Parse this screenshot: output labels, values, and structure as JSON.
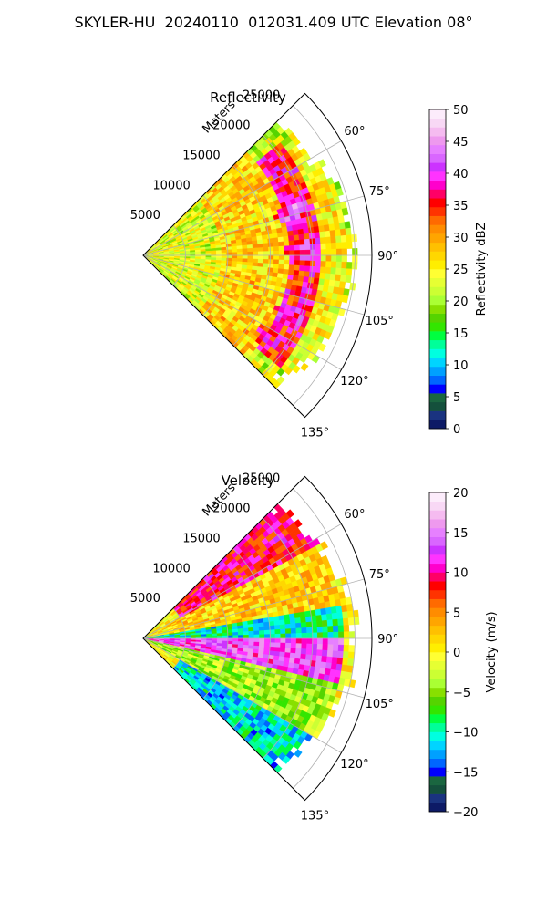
{
  "figure": {
    "title": "SKYLER-HU  20240110  012031.409 UTC Elevation 08°"
  },
  "chart_data": [
    {
      "type": "heatmap",
      "title": "Reflectivity",
      "projection": "polar-sector",
      "radial_axis_label": "Meters",
      "radial_ticks": [
        5000,
        10000,
        15000,
        20000,
        25000
      ],
      "radial_tick_labels": [
        "5000",
        "10000",
        "15000",
        "20000",
        "25000"
      ],
      "rlim": [
        0,
        27000
      ],
      "angle_ticks_deg": [
        60,
        75,
        90,
        105,
        120,
        135
      ],
      "angle_tick_labels": [
        "60°",
        "75°",
        "90°",
        "105°",
        "120°",
        "135°"
      ],
      "theta_range_deg": [
        45,
        135
      ],
      "grid": true,
      "colorbar": {
        "label": "Reflectivity dBZ",
        "range": [
          0,
          50
        ],
        "ticks": [
          0,
          5,
          10,
          15,
          20,
          25,
          30,
          35,
          40,
          45,
          50
        ],
        "tick_labels": [
          "0",
          "5",
          "10",
          "15",
          "20",
          "25",
          "30",
          "35",
          "40",
          "45",
          "50"
        ],
        "colors": [
          "#0d1a66",
          "#1a3380",
          "#14503c",
          "#1a6640",
          "#0000ff",
          "#0066ff",
          "#00a0ff",
          "#00d4ff",
          "#00ffe0",
          "#00ff99",
          "#00ff40",
          "#33e600",
          "#55d400",
          "#88e000",
          "#aaff33",
          "#ccff33",
          "#e6ff33",
          "#ffff33",
          "#ffee00",
          "#ffd700",
          "#ffc000",
          "#ffa500",
          "#ff8c00",
          "#ff6a00",
          "#ff3300",
          "#ff0000",
          "#ff0066",
          "#ff00cc",
          "#ff33ff",
          "#cc33ff",
          "#d966ff",
          "#e680ff",
          "#ee99ee",
          "#f5bbf0",
          "#f8d8f5",
          "#fcecfb"
        ]
      },
      "field_description": [
        {
          "range_m": [
            0,
            9000
          ],
          "theta_deg": [
            45,
            135
          ],
          "value_dbz": 23
        },
        {
          "range_m": [
            9000,
            17000
          ],
          "theta_deg": [
            45,
            135
          ],
          "value_dbz": 27
        },
        {
          "range_m": [
            17000,
            21000
          ],
          "theta_deg": [
            50,
            130
          ],
          "value_dbz": 36
        },
        {
          "range_m": [
            21000,
            24000
          ],
          "theta_deg": [
            55,
            125
          ],
          "value_dbz": 25
        }
      ],
      "cores": [
        {
          "range_m": 18500,
          "theta_deg": 74,
          "value_dbz": 42
        },
        {
          "range_m": 19000,
          "theta_deg": 88,
          "value_dbz": 41
        },
        {
          "range_m": 19000,
          "theta_deg": 112,
          "value_dbz": 40
        },
        {
          "range_m": 18000,
          "theta_deg": 124,
          "value_dbz": 38
        }
      ]
    },
    {
      "type": "heatmap",
      "title": "Velocity",
      "projection": "polar-sector",
      "radial_axis_label": "Meters",
      "radial_ticks": [
        5000,
        10000,
        15000,
        20000,
        25000
      ],
      "radial_tick_labels": [
        "5000",
        "10000",
        "15000",
        "20000",
        "25000"
      ],
      "rlim": [
        0,
        27000
      ],
      "angle_ticks_deg": [
        60,
        75,
        90,
        105,
        120,
        135
      ],
      "angle_tick_labels": [
        "60°",
        "75°",
        "90°",
        "105°",
        "120°",
        "135°"
      ],
      "theta_range_deg": [
        45,
        135
      ],
      "grid": true,
      "colorbar": {
        "label": "Velocity (m/s)",
        "range": [
          -20,
          20
        ],
        "ticks": [
          -20,
          -15,
          -10,
          -5,
          0,
          5,
          10,
          15,
          20
        ],
        "tick_labels": [
          "−20",
          "−15",
          "−10",
          "−5",
          "0",
          "5",
          "10",
          "15",
          "20"
        ],
        "colors": [
          "#0d1a66",
          "#1a3380",
          "#14503c",
          "#1a6640",
          "#0000ff",
          "#0066ff",
          "#00a0ff",
          "#00d4ff",
          "#00ffe0",
          "#00ff99",
          "#00ff40",
          "#33e600",
          "#55d400",
          "#88e000",
          "#aaff33",
          "#ccff33",
          "#e6ff33",
          "#ffff33",
          "#ffee00",
          "#ffd700",
          "#ffc000",
          "#ffa500",
          "#ff8c00",
          "#ff6a00",
          "#ff3300",
          "#ff0000",
          "#ff0066",
          "#ff00cc",
          "#ff33ff",
          "#cc33ff",
          "#d966ff",
          "#e680ff",
          "#ee99ee",
          "#f5bbf0",
          "#f8d8f5",
          "#fcecfb"
        ]
      },
      "field_description": [
        {
          "theta_deg": [
            45,
            62
          ],
          "range_m": [
            5000,
            26000
          ],
          "value_ms": 9
        },
        {
          "theta_deg": [
            62,
            80
          ],
          "range_m": [
            3000,
            24000
          ],
          "value_ms": 2
        },
        {
          "theta_deg": [
            80,
            90
          ],
          "range_m": [
            0,
            24000
          ],
          "value_ms": -10
        },
        {
          "theta_deg": [
            90,
            103
          ],
          "range_m": [
            0,
            24000
          ],
          "value_ms": 13
        },
        {
          "theta_deg": [
            103,
            120
          ],
          "range_m": [
            0,
            24000
          ],
          "value_ms": -4
        },
        {
          "theta_deg": [
            120,
            135
          ],
          "range_m": [
            5000,
            26000
          ],
          "value_ms": -11
        }
      ]
    }
  ]
}
